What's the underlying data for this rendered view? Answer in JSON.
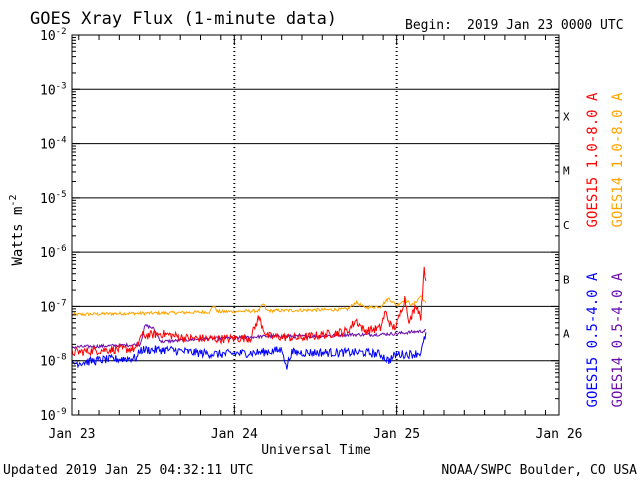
{
  "header": {
    "title": "GOES Xray Flux (1-minute data)",
    "begin_label": "Begin:",
    "begin_value": "2019 Jan 23 0000 UTC"
  },
  "footer": {
    "updated": "Updated 2019 Jan 25 04:32:11 UTC",
    "credit": "NOAA/SWPC Boulder, CO USA"
  },
  "chart_data": {
    "type": "line",
    "ylabel": "Watts m",
    "ylabel_sup": "-2",
    "xlabel": "Universal Time",
    "yscale": "log",
    "ylim": [
      1e-09,
      0.01
    ],
    "y_ticks": [
      {
        "exp": -2,
        "label": "10",
        "sup": "-2"
      },
      {
        "exp": -3,
        "label": "10",
        "sup": "-3"
      },
      {
        "exp": -4,
        "label": "10",
        "sup": "-4"
      },
      {
        "exp": -5,
        "label": "10",
        "sup": "-5"
      },
      {
        "exp": -6,
        "label": "10",
        "sup": "-6"
      },
      {
        "exp": -7,
        "label": "10",
        "sup": "-7"
      },
      {
        "exp": -8,
        "label": "10",
        "sup": "-8"
      },
      {
        "exp": -9,
        "label": "10",
        "sup": "-9"
      }
    ],
    "x_ticks": [
      {
        "day": 0,
        "label": "Jan 23"
      },
      {
        "day": 1,
        "label": "Jan 24"
      },
      {
        "day": 2,
        "label": "Jan 25"
      },
      {
        "day": 3,
        "label": "Jan 26"
      }
    ],
    "xlim_days": [
      0,
      3
    ],
    "flare_classes": [
      {
        "label": "X",
        "exp": -3.5
      },
      {
        "label": "M",
        "exp": -4.5
      },
      {
        "label": "C",
        "exp": -5.5
      },
      {
        "label": "B",
        "exp": -6.5
      },
      {
        "label": "A",
        "exp": -7.5
      }
    ],
    "class_lines": [
      -3,
      -4,
      -5,
      -6,
      -7,
      -8
    ],
    "series": [
      {
        "name": "GOES14 1.0-8.0 A",
        "color": "#ffa500",
        "noise": 0.03,
        "points": [
          [
            0,
            -7.15
          ],
          [
            0.3,
            -7.13
          ],
          [
            0.6,
            -7.12
          ],
          [
            0.85,
            -7.1
          ],
          [
            0.87,
            -6.98
          ],
          [
            0.9,
            -7.1
          ],
          [
            1.15,
            -7.08
          ],
          [
            1.18,
            -6.95
          ],
          [
            1.2,
            -7.08
          ],
          [
            1.6,
            -7.06
          ],
          [
            1.7,
            -7.05
          ],
          [
            1.75,
            -6.92
          ],
          [
            1.8,
            -7.02
          ],
          [
            1.9,
            -7.0
          ],
          [
            1.95,
            -6.85
          ],
          [
            2.0,
            -6.98
          ],
          [
            2.05,
            -6.88
          ],
          [
            2.1,
            -6.98
          ],
          [
            2.15,
            -6.8
          ],
          [
            2.18,
            -6.95
          ]
        ]
      },
      {
        "name": "GOES14 0.5-4.0 A",
        "color": "#6a0dad",
        "noise": 0.03,
        "points": [
          [
            0,
            -7.75
          ],
          [
            0.3,
            -7.72
          ],
          [
            0.42,
            -7.7
          ],
          [
            0.45,
            -7.35
          ],
          [
            0.5,
            -7.4
          ],
          [
            0.55,
            -7.65
          ],
          [
            0.8,
            -7.6
          ],
          [
            1.0,
            -7.58
          ],
          [
            1.2,
            -7.55
          ],
          [
            1.5,
            -7.55
          ],
          [
            1.7,
            -7.52
          ],
          [
            1.85,
            -7.52
          ],
          [
            2.0,
            -7.5
          ],
          [
            2.1,
            -7.47
          ],
          [
            2.18,
            -7.45
          ]
        ]
      },
      {
        "name": "GOES15 1.0-8.0 A",
        "color": "#ff0000",
        "noise": 0.08,
        "points": [
          [
            0,
            -7.85
          ],
          [
            0.2,
            -7.8
          ],
          [
            0.4,
            -7.78
          ],
          [
            0.42,
            -7.55
          ],
          [
            0.55,
            -7.5
          ],
          [
            0.7,
            -7.58
          ],
          [
            0.9,
            -7.6
          ],
          [
            1.1,
            -7.58
          ],
          [
            1.15,
            -7.2
          ],
          [
            1.2,
            -7.55
          ],
          [
            1.4,
            -7.58
          ],
          [
            1.6,
            -7.5
          ],
          [
            1.7,
            -7.45
          ],
          [
            1.75,
            -7.25
          ],
          [
            1.8,
            -7.45
          ],
          [
            1.9,
            -7.4
          ],
          [
            1.93,
            -7.1
          ],
          [
            1.97,
            -7.4
          ],
          [
            2.0,
            -7.35
          ],
          [
            2.05,
            -6.85
          ],
          [
            2.08,
            -7.3
          ],
          [
            2.12,
            -6.95
          ],
          [
            2.15,
            -7.2
          ],
          [
            2.17,
            -6.2
          ],
          [
            2.18,
            -6.6
          ]
        ]
      },
      {
        "name": "GOES15 0.5-4.0 A",
        "color": "#0000ff",
        "noise": 0.08,
        "points": [
          [
            0,
            -8.05
          ],
          [
            0.2,
            -7.98
          ],
          [
            0.4,
            -7.95
          ],
          [
            0.42,
            -7.8
          ],
          [
            0.6,
            -7.8
          ],
          [
            0.75,
            -7.85
          ],
          [
            0.9,
            -7.88
          ],
          [
            1.15,
            -7.85
          ],
          [
            1.3,
            -7.8
          ],
          [
            1.32,
            -8.15
          ],
          [
            1.35,
            -7.85
          ],
          [
            1.6,
            -7.85
          ],
          [
            1.8,
            -7.85
          ],
          [
            1.9,
            -7.88
          ],
          [
            1.95,
            -8.0
          ],
          [
            2.0,
            -7.88
          ],
          [
            2.1,
            -7.88
          ],
          [
            2.15,
            -7.85
          ],
          [
            2.18,
            -7.5
          ]
        ]
      }
    ],
    "legend": [
      {
        "label": "GOES15 1.0-8.0 A",
        "color": "#ff0000"
      },
      {
        "label": "GOES14 1.0-8.0 A",
        "color": "#ffa500"
      },
      {
        "label": "GOES15 0.5-4.0 A",
        "color": "#0000ff"
      },
      {
        "label": "GOES14 0.5-4.0 A",
        "color": "#6a0dad"
      }
    ],
    "legend_placement": "right, rotated vertical"
  }
}
